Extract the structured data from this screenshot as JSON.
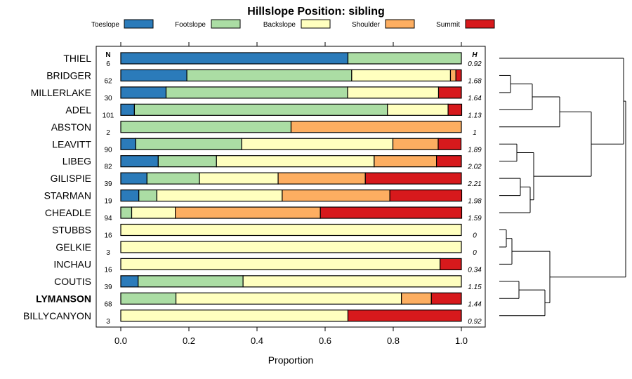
{
  "chart_data": {
    "type": "bar",
    "orientation": "horizontal",
    "stacked": true,
    "title": "Hillslope Position: sibling",
    "xlabel": "Proportion",
    "ylabel": "",
    "xlim": [
      0,
      1
    ],
    "x_ticks": [
      0.0,
      0.2,
      0.4,
      0.6,
      0.8,
      1.0
    ],
    "x_tick_labels": [
      "0.0",
      "0.2",
      "0.4",
      "0.6",
      "0.8",
      "1.0"
    ],
    "n_header": "N",
    "h_header": "H",
    "highlighted_category": "LYMANSON",
    "legend": [
      {
        "name": "Toeslope",
        "color": "#2b7bba"
      },
      {
        "name": "Footslope",
        "color": "#abdda4"
      },
      {
        "name": "Backslope",
        "color": "#ffffbf"
      },
      {
        "name": "Shoulder",
        "color": "#fdae61"
      },
      {
        "name": "Summit",
        "color": "#d7191c"
      }
    ],
    "rows": [
      {
        "label": "THIEL",
        "n": "6",
        "h": "0.92",
        "values": [
          0.667,
          0.333,
          0,
          0,
          0
        ]
      },
      {
        "label": "BRIDGER",
        "n": "62",
        "h": "1.68",
        "values": [
          0.194,
          0.484,
          0.29,
          0.016,
          0.016
        ]
      },
      {
        "label": "MILLERLAKE",
        "n": "30",
        "h": "1.64",
        "values": [
          0.133,
          0.533,
          0.267,
          0,
          0.067
        ]
      },
      {
        "label": "ADEL",
        "n": "101",
        "h": "1.13",
        "values": [
          0.04,
          0.743,
          0.178,
          0,
          0.04
        ]
      },
      {
        "label": "ABSTON",
        "n": "2",
        "h": "1",
        "values": [
          0,
          0.5,
          0,
          0.5,
          0
        ]
      },
      {
        "label": "LEAVITT",
        "n": "90",
        "h": "1.89",
        "values": [
          0.044,
          0.311,
          0.444,
          0.133,
          0.067
        ]
      },
      {
        "label": "LIBEG",
        "n": "82",
        "h": "2.02",
        "values": [
          0.11,
          0.171,
          0.463,
          0.183,
          0.073
        ]
      },
      {
        "label": "GILISPIE",
        "n": "39",
        "h": "2.21",
        "values": [
          0.077,
          0.154,
          0.231,
          0.256,
          0.282
        ]
      },
      {
        "label": "STARMAN",
        "n": "19",
        "h": "1.98",
        "values": [
          0.053,
          0.053,
          0.368,
          0.316,
          0.211
        ]
      },
      {
        "label": "CHEADLE",
        "n": "94",
        "h": "1.59",
        "values": [
          0,
          0.032,
          0.128,
          0.426,
          0.415
        ]
      },
      {
        "label": "STUBBS",
        "n": "16",
        "h": "0",
        "values": [
          0,
          0,
          1,
          0,
          0
        ]
      },
      {
        "label": "GELKIE",
        "n": "3",
        "h": "0",
        "values": [
          0,
          0,
          1,
          0,
          0
        ]
      },
      {
        "label": "INCHAU",
        "n": "16",
        "h": "0.34",
        "values": [
          0,
          0,
          0.9375,
          0,
          0.0625
        ]
      },
      {
        "label": "COUTIS",
        "n": "39",
        "h": "1.15",
        "values": [
          0.051,
          0.308,
          0.641,
          0,
          0
        ]
      },
      {
        "label": "LYMANSON",
        "n": "68",
        "h": "1.44",
        "values": [
          0,
          0.162,
          0.662,
          0.088,
          0.088
        ]
      },
      {
        "label": "BILLYCANYON",
        "n": "3",
        "h": "0.92",
        "values": [
          0,
          0,
          0.667,
          0,
          0.333
        ]
      }
    ]
  }
}
